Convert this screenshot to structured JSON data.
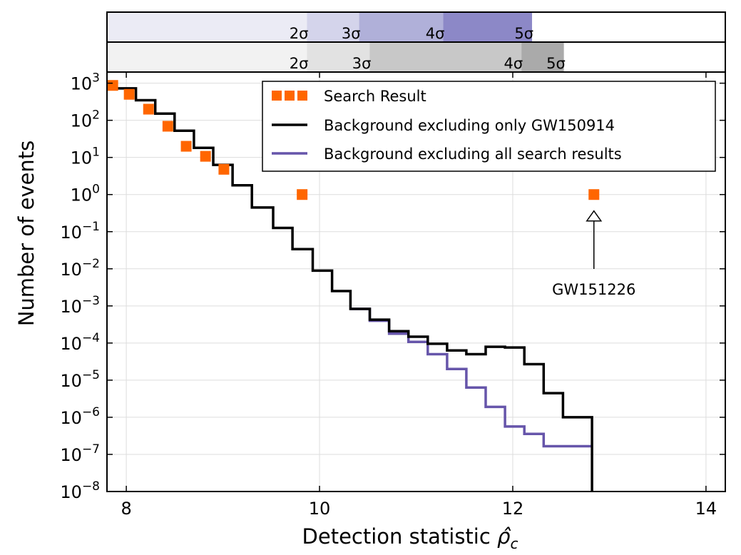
{
  "chart_data": {
    "type": "line",
    "xlabel_text": "Detection statistic ",
    "xlabel_symbol": "ρ̂",
    "xlabel_subscript": "c",
    "ylabel": "Number of events",
    "xlim": [
      7.8,
      14.2
    ],
    "ylim_log10": [
      -8,
      3.3
    ],
    "yscale": "log",
    "grid": true,
    "legend_position": "top-right",
    "x_ticks": [
      8,
      10,
      12,
      14
    ],
    "y_ticks_log10": [
      3,
      2,
      1,
      0,
      -1,
      -2,
      -3,
      -4,
      -5,
      -6,
      -7,
      -8
    ],
    "series": [
      {
        "name": "Search Result",
        "kind": "markers",
        "color": "#ff6600",
        "points": [
          [
            7.86,
            2.94
          ],
          [
            8.03,
            2.7
          ],
          [
            8.23,
            2.3
          ],
          [
            8.43,
            1.84
          ],
          [
            8.62,
            1.3
          ],
          [
            8.82,
            1.03
          ],
          [
            9.01,
            0.68
          ],
          [
            9.82,
            0.0
          ],
          [
            12.84,
            0.0
          ]
        ]
      },
      {
        "name": "Background excluding only GW150914",
        "kind": "step",
        "color": "#000000",
        "steps": [
          [
            7.8,
            2.98
          ],
          [
            7.9,
            2.86
          ],
          [
            8.1,
            2.54
          ],
          [
            8.3,
            2.18
          ],
          [
            8.5,
            1.72
          ],
          [
            8.7,
            1.26
          ],
          [
            8.9,
            0.8
          ],
          [
            9.1,
            0.25
          ],
          [
            9.3,
            -0.35
          ],
          [
            9.52,
            -0.9
          ],
          [
            9.72,
            -1.47
          ],
          [
            9.93,
            -2.05
          ],
          [
            10.13,
            -2.6
          ],
          [
            10.32,
            -3.08
          ],
          [
            10.52,
            -3.37
          ],
          [
            10.72,
            -3.68
          ],
          [
            10.92,
            -3.83
          ],
          [
            11.12,
            -4.02
          ],
          [
            11.32,
            -4.2
          ],
          [
            11.52,
            -4.3
          ],
          [
            11.72,
            -4.1
          ],
          [
            11.92,
            -4.12
          ],
          [
            12.12,
            -4.57
          ],
          [
            12.32,
            -5.35
          ],
          [
            12.52,
            -6.0
          ],
          [
            12.82,
            -8.0
          ]
        ],
        "x_end": 12.82
      },
      {
        "name": "Background excluding all search results",
        "kind": "step",
        "color": "#6655aa",
        "steps": [
          [
            10.32,
            -3.08
          ],
          [
            10.52,
            -3.4
          ],
          [
            10.72,
            -3.75
          ],
          [
            10.92,
            -3.97
          ],
          [
            11.12,
            -4.3
          ],
          [
            11.32,
            -4.7
          ],
          [
            11.52,
            -5.2
          ],
          [
            11.72,
            -5.72
          ],
          [
            11.92,
            -6.25
          ],
          [
            12.12,
            -6.45
          ],
          [
            12.32,
            -6.78
          ],
          [
            12.82,
            -6.78
          ]
        ],
        "x_end": 12.82
      }
    ],
    "annotation": {
      "text": "GW151226",
      "x": 12.84,
      "y_log10": 0.0
    },
    "sigma_bands": [
      {
        "labels": [
          {
            "text": "2σ",
            "x": 9.87
          },
          {
            "text": "3σ",
            "x": 10.41
          },
          {
            "text": "4σ",
            "x": 11.28
          },
          {
            "text": "5σ",
            "x": 12.2
          }
        ],
        "colors": [
          "#ebebf5",
          "#d4d4eb",
          "#b0b0d9",
          "#8c88c7"
        ],
        "end_color": "#ffffff"
      },
      {
        "labels": [
          {
            "text": "2σ",
            "x": 9.87
          },
          {
            "text": "3σ",
            "x": 10.52
          },
          {
            "text": "4σ",
            "x": 12.09
          },
          {
            "text": "5σ",
            "x": 12.53
          }
        ],
        "colors": [
          "#f2f2f2",
          "#e2e2e2",
          "#c8c8c8",
          "#aaaaaa"
        ],
        "end_color": "#ffffff"
      }
    ]
  }
}
